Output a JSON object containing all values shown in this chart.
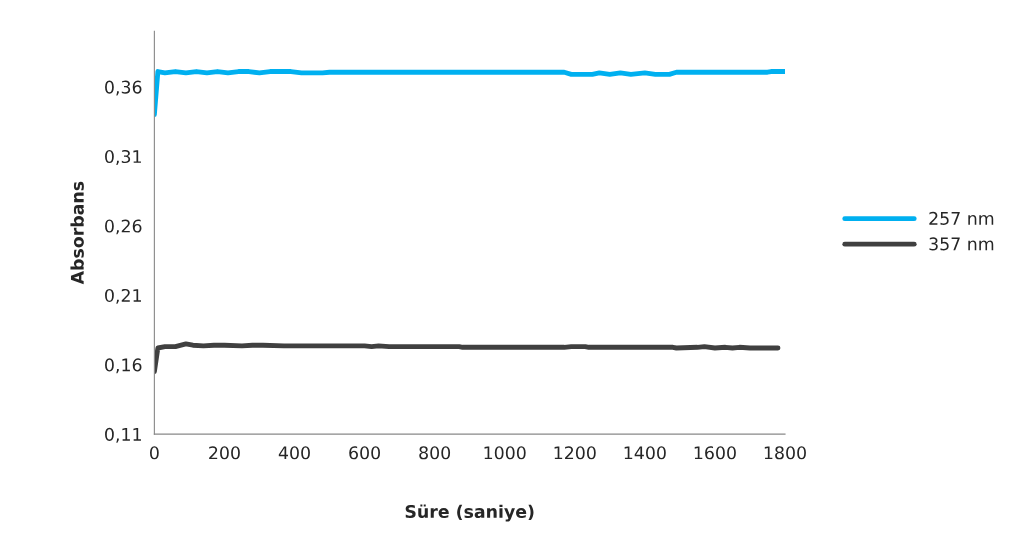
{
  "chart_data": {
    "type": "line",
    "xlabel": "Süre (saniye)",
    "ylabel": "Absorbans",
    "xlim": [
      0,
      1800
    ],
    "xticks": [
      0,
      200,
      400,
      600,
      800,
      1000,
      1200,
      1400,
      1600,
      1800
    ],
    "ylim": [
      0.11,
      0.4
    ],
    "yticks": [
      {
        "value": 0.11,
        "label": "0,11"
      },
      {
        "value": 0.16,
        "label": "0,16"
      },
      {
        "value": 0.21,
        "label": "0,21"
      },
      {
        "value": 0.26,
        "label": "0,26"
      },
      {
        "value": 0.31,
        "label": "0,31"
      },
      {
        "value": 0.36,
        "label": "0,36"
      }
    ],
    "grid": false,
    "legend": "right",
    "marker": "none",
    "line_style": "solid",
    "series": [
      {
        "name": "257 nm",
        "color": "#00b0f0",
        "x": [
          0,
          10,
          30,
          60,
          90,
          120,
          150,
          180,
          210,
          240,
          270,
          300,
          330,
          360,
          390,
          420,
          450,
          480,
          500,
          700,
          1000,
          1170,
          1190,
          1250,
          1270,
          1300,
          1330,
          1360,
          1400,
          1430,
          1470,
          1490,
          1700,
          1750,
          1760,
          1800
        ],
        "values": [
          0.34,
          0.371,
          0.37,
          0.371,
          0.37,
          0.371,
          0.37,
          0.371,
          0.37,
          0.371,
          0.371,
          0.37,
          0.371,
          0.371,
          0.371,
          0.37,
          0.37,
          0.37,
          0.3705,
          0.3705,
          0.3705,
          0.3705,
          0.369,
          0.369,
          0.37,
          0.369,
          0.37,
          0.369,
          0.37,
          0.369,
          0.369,
          0.3705,
          0.3705,
          0.3705,
          0.371,
          0.371
        ]
      },
      {
        "name": "357 nm",
        "color": "#404040",
        "x": [
          0,
          10,
          30,
          60,
          90,
          110,
          140,
          170,
          200,
          250,
          280,
          310,
          370,
          600,
          620,
          640,
          670,
          870,
          880,
          1170,
          1190,
          1230,
          1240,
          1480,
          1490,
          1550,
          1570,
          1600,
          1630,
          1650,
          1670,
          1700,
          1780
        ],
        "values": [
          0.155,
          0.172,
          0.173,
          0.173,
          0.175,
          0.174,
          0.1735,
          0.174,
          0.174,
          0.1735,
          0.174,
          0.174,
          0.1735,
          0.1735,
          0.173,
          0.1735,
          0.173,
          0.173,
          0.1725,
          0.1725,
          0.173,
          0.173,
          0.1725,
          0.1725,
          0.172,
          0.1725,
          0.173,
          0.172,
          0.1725,
          0.172,
          0.1725,
          0.172,
          0.172
        ]
      }
    ]
  }
}
